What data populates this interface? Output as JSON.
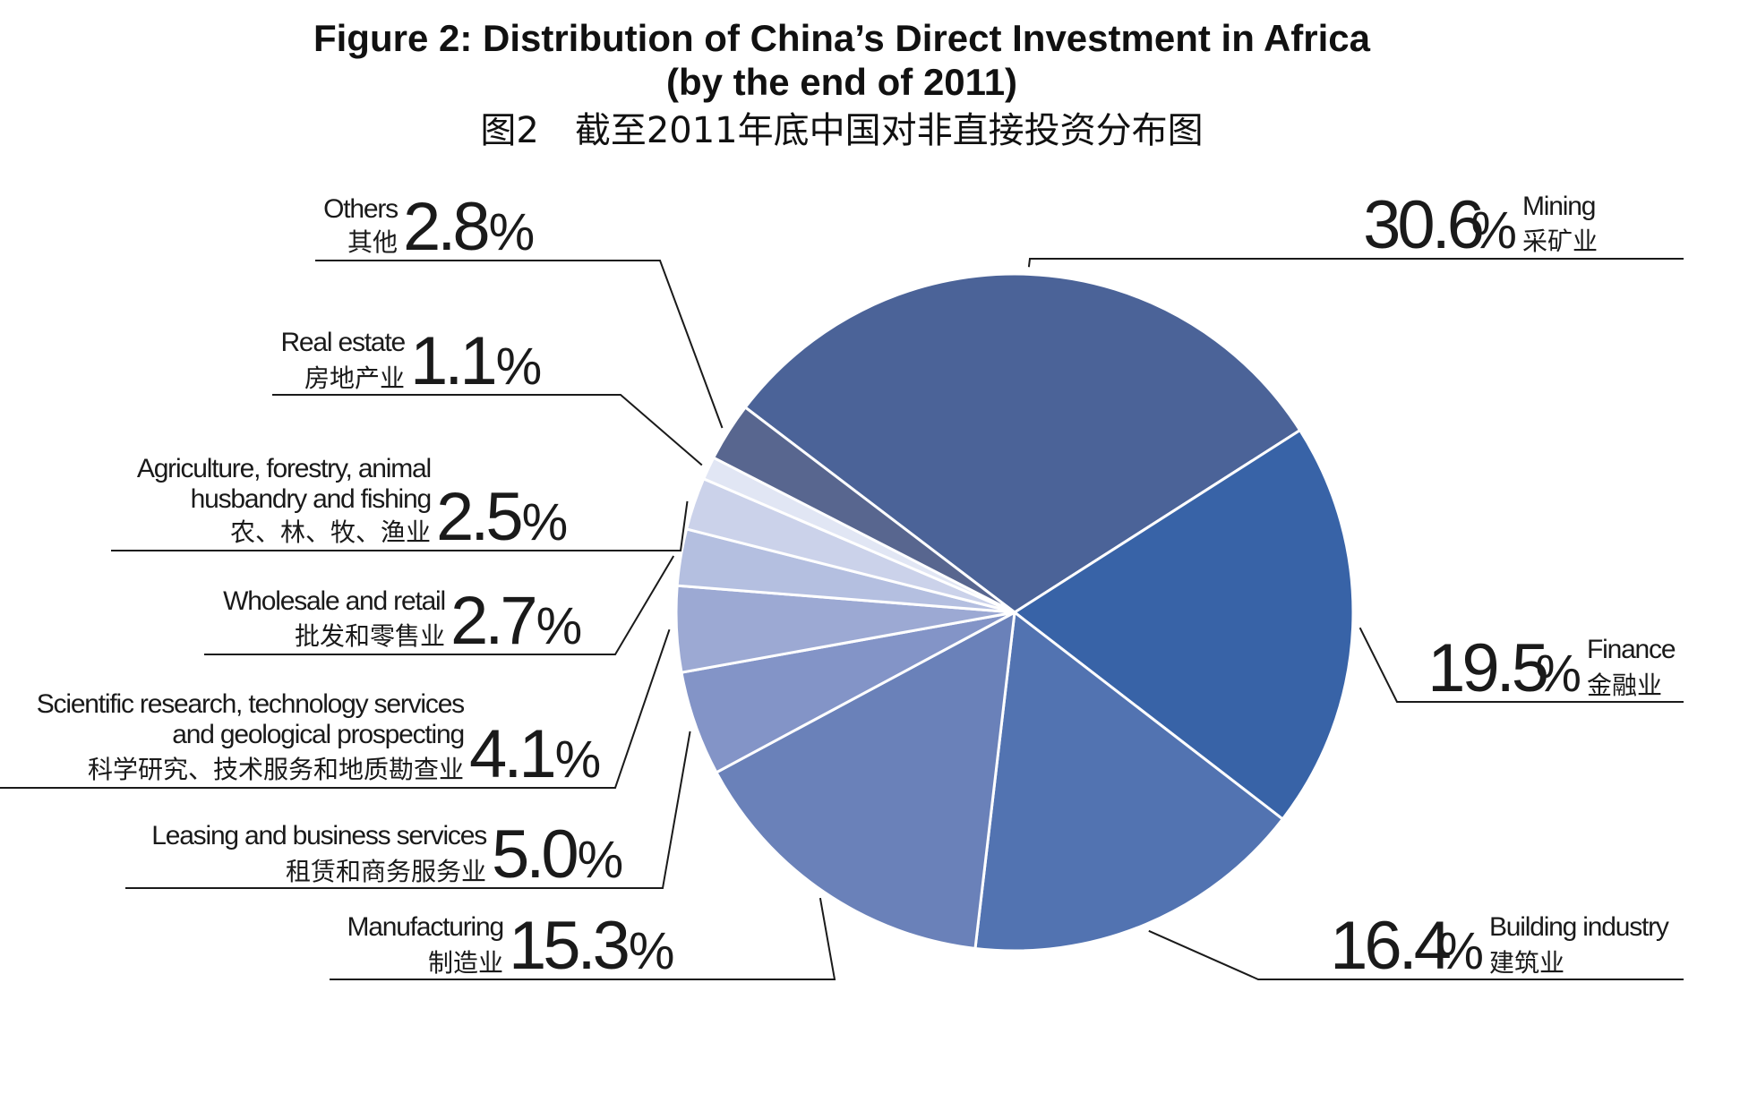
{
  "chart_data": {
    "type": "pie",
    "title": "Figure 2: Distribution of China’s Direct Investment in Africa",
    "subtitle": "(by the end of 2011)",
    "title_zh": "图2　截至2011年底中国对非直接投资分布图",
    "unit_symbol": "%",
    "slices": [
      {
        "key": "mining",
        "value": 30.6,
        "value_label": "30.6",
        "en": [
          "Mining"
        ],
        "zh": "采矿业",
        "color": "#4b6398"
      },
      {
        "key": "finance",
        "value": 19.5,
        "value_label": "19.5",
        "en": [
          "Finance"
        ],
        "zh": "金融业",
        "color": "#3863a7"
      },
      {
        "key": "building",
        "value": 16.4,
        "value_label": "16.4",
        "en": [
          "Building industry"
        ],
        "zh": "建筑业",
        "color": "#5273b1"
      },
      {
        "key": "manufacturing",
        "value": 15.3,
        "value_label": "15.3",
        "en": [
          "Manufacturing"
        ],
        "zh": "制造业",
        "color": "#6a81b9"
      },
      {
        "key": "leasing",
        "value": 5.0,
        "value_label": "5.0",
        "en": [
          "Leasing and business services"
        ],
        "zh": "租赁和商务服务业",
        "color": "#8394c7"
      },
      {
        "key": "scientific",
        "value": 4.1,
        "value_label": "4.1",
        "en": [
          "Scientific research, technology services",
          "and geological prospecting"
        ],
        "zh": "科学研究、技术服务和地质勘查业",
        "color": "#9ca9d3"
      },
      {
        "key": "wholesale",
        "value": 2.7,
        "value_label": "2.7",
        "en": [
          "Wholesale and retail"
        ],
        "zh": "批发和零售业",
        "color": "#b4bfe0"
      },
      {
        "key": "agriculture",
        "value": 2.5,
        "value_label": "2.5",
        "en": [
          "Agriculture, forestry, animal",
          "husbandry and fishing"
        ],
        "zh": "农、林、牧、渔业",
        "color": "#cbd2ea"
      },
      {
        "key": "real_estate",
        "value": 1.1,
        "value_label": "1.1",
        "en": [
          "Real estate"
        ],
        "zh": "房地产业",
        "color": "#e1e6f4"
      },
      {
        "key": "others",
        "value": 2.8,
        "value_label": "2.8",
        "en": [
          "Others"
        ],
        "zh": "其他",
        "color": "#58668f"
      }
    ]
  }
}
